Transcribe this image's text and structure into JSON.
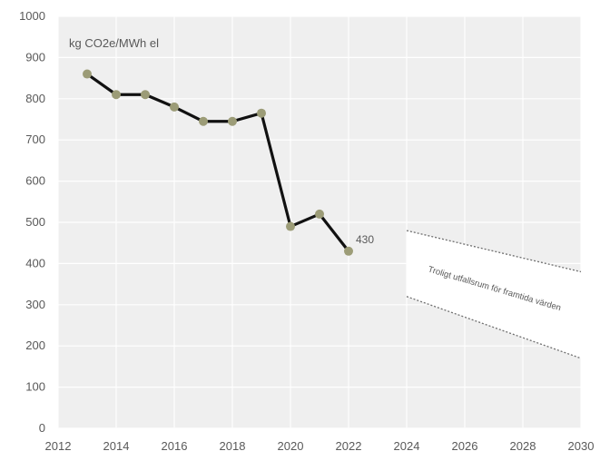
{
  "chart_data": {
    "type": "line",
    "ylabel": "kg CO2e/MWh el",
    "xlim": [
      2012,
      2030
    ],
    "ylim": [
      0,
      1000
    ],
    "x_ticks": [
      "2012",
      "2014",
      "2016",
      "2018",
      "2020",
      "2022",
      "2024",
      "2026",
      "2028",
      "2030"
    ],
    "y_ticks": [
      "0",
      "100",
      "200",
      "300",
      "400",
      "500",
      "600",
      "700",
      "800",
      "900",
      "1000"
    ],
    "grid": true,
    "series": [
      {
        "x": [
          2013,
          2014,
          2015,
          2016,
          2017,
          2018,
          2019,
          2020,
          2021,
          2022
        ],
        "values": [
          860,
          810,
          810,
          780,
          745,
          745,
          765,
          490,
          520,
          430
        ]
      }
    ],
    "data_labels": [
      {
        "x": 2022,
        "y": 430,
        "text": "430"
      }
    ],
    "projection_band": {
      "text": "Troligt utfallsrum för framtida värden",
      "x_range": [
        2024,
        2030
      ],
      "upper": [
        480,
        380
      ],
      "lower": [
        320,
        170
      ]
    },
    "colors": {
      "plot_background": "#efefef",
      "grid": "#ffffff",
      "line": "#111111",
      "marker": "#9c9c77",
      "band_fill": "#ffffff",
      "band_edge": "#6f6f6f",
      "text": "#595959"
    }
  }
}
